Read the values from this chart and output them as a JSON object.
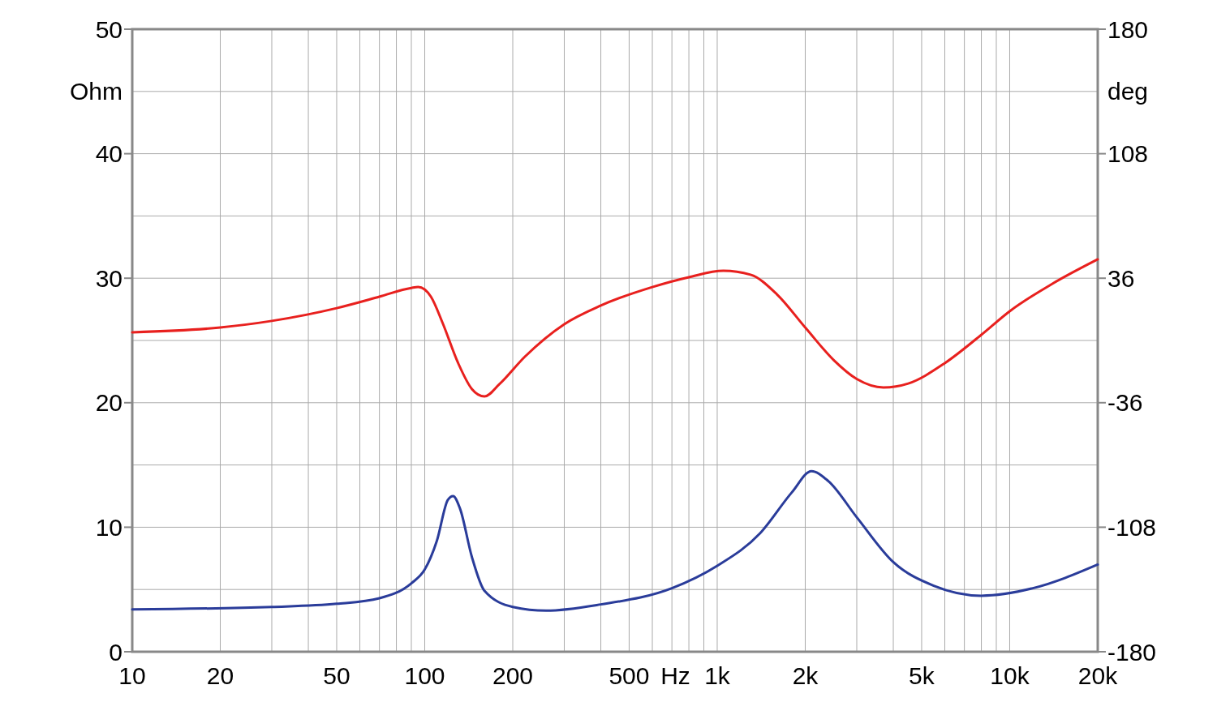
{
  "chart_data": {
    "type": "line",
    "log": "x",
    "grid": true,
    "xlabel": "Hz",
    "ylabel": "Ohm",
    "y2label": "deg",
    "xlim": [
      10,
      20000
    ],
    "ylim": [
      0,
      50
    ],
    "y2lim": [
      -180,
      180
    ],
    "xticks": [
      10,
      {
        "value": 20,
        "label": "20"
      },
      {
        "value": 30,
        "label": null
      },
      {
        "value": 40,
        "label": null
      },
      50,
      {
        "value": 60,
        "label": null
      },
      {
        "value": 70,
        "label": null
      },
      {
        "value": 80,
        "label": null
      },
      {
        "value": 90,
        "label": null
      },
      100,
      200,
      {
        "value": 300,
        "label": null
      },
      {
        "value": 400,
        "label": null
      },
      500,
      {
        "value": 600,
        "label": null
      },
      {
        "value": 700,
        "label": null
      },
      {
        "value": 800,
        "label": null
      },
      {
        "value": 900,
        "label": null
      },
      {
        "value": 1000,
        "label": "1k"
      },
      {
        "value": 2000,
        "label": "2k"
      },
      {
        "value": 3000,
        "label": null
      },
      {
        "value": 4000,
        "label": null
      },
      {
        "value": 5000,
        "label": "5k"
      },
      {
        "value": 6000,
        "label": null
      },
      {
        "value": 7000,
        "label": null
      },
      {
        "value": 8000,
        "label": null
      },
      {
        "value": 9000,
        "label": null
      },
      {
        "value": 10000,
        "label": "10k"
      },
      {
        "value": 20000,
        "label": "20k"
      }
    ],
    "yticks": [
      0,
      {
        "value": 5,
        "label": null
      },
      10,
      {
        "value": 15,
        "label": null
      },
      20,
      {
        "value": 25,
        "label": null
      },
      30,
      {
        "value": 35,
        "label": null
      },
      40,
      {
        "value": 45,
        "label": null
      },
      50
    ],
    "y2ticks": [
      -180,
      -108,
      -36,
      36,
      108,
      180
    ],
    "series": [
      {
        "color": "#e8201e",
        "axis": "y2",
        "x": [
          10,
          20,
          30,
          50,
          70,
          90,
          95,
          105,
          115,
          130,
          145,
          160,
          180,
          220,
          300,
          400,
          600,
          800,
          1050,
          1300,
          1600,
          2000,
          2500,
          3000,
          3700,
          4500,
          6000,
          8000,
          10000,
          14000,
          20000
        ],
        "values": [
          4.7,
          7.5,
          11.3,
          18.7,
          25.3,
          30.4,
          30.9,
          25.3,
          10.3,
          -13.0,
          -28.1,
          -32.4,
          -25.3,
          -9.4,
          9.4,
          20.2,
          30.9,
          36.6,
          40.3,
          38.0,
          26.7,
          7.5,
          -11.3,
          -22.3,
          -27.2,
          -24.9,
          -13.1,
          3.3,
          16.9,
          32.8,
          46.9
        ]
      },
      {
        "color": "#2a3c9a",
        "x": [
          10,
          30,
          50,
          70,
          90,
          100,
          110,
          120,
          125,
          132,
          145,
          160,
          200,
          260,
          400,
          700,
          1000,
          1400,
          1800,
          2100,
          2400,
          3000,
          4000,
          5500,
          8000,
          12000,
          20000
        ],
        "values": [
          3.4,
          3.6,
          3.85,
          4.3,
          5.5,
          6.6,
          8.9,
          12.2,
          12.5,
          11.5,
          7.6,
          4.9,
          3.6,
          3.3,
          3.8,
          5.1,
          6.9,
          9.5,
          12.8,
          14.5,
          13.7,
          10.8,
          7.2,
          5.3,
          4.5,
          5.1,
          7.0
        ]
      }
    ]
  }
}
